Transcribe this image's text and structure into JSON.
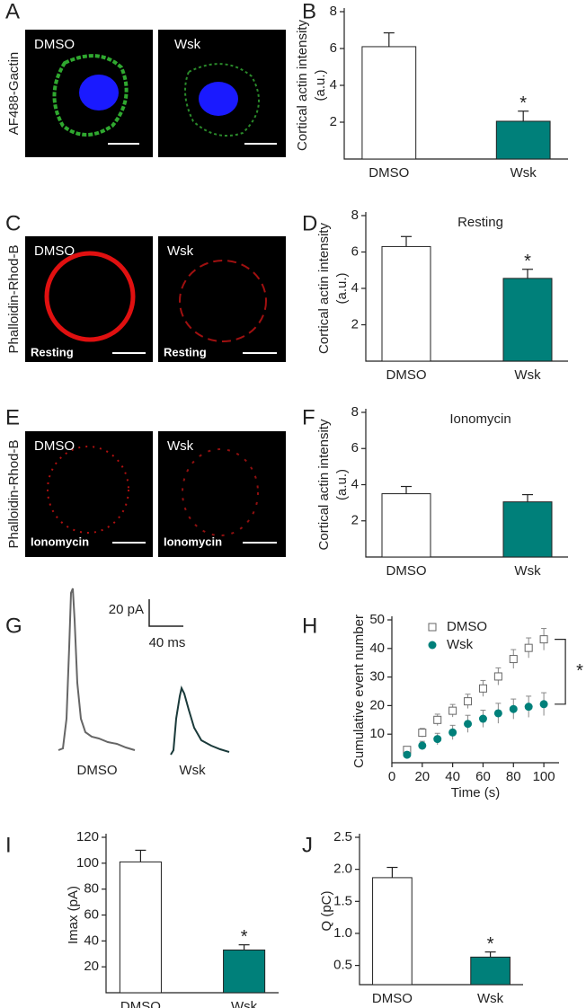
{
  "panel_letters": [
    "A",
    "B",
    "C",
    "D",
    "E",
    "F",
    "G",
    "H",
    "I",
    "J"
  ],
  "images": [
    {
      "ylabel": "AF488-Gactin",
      "left": "DMSO",
      "right": "Wsk"
    },
    {
      "ylabel": "Phalloidin-Rhod-B",
      "left": "DMSO",
      "right": "Wsk",
      "left_note": "Resting",
      "right_note": "Resting"
    },
    {
      "ylabel": "Phalloidin-Rhod-B",
      "left": "DMSO",
      "right": "Wsk",
      "left_note": "Ionomycin",
      "right_note": "Ionomycin"
    }
  ],
  "traces": {
    "scale_y": "20 pA",
    "scale_x": "40 ms",
    "left": "DMSO",
    "right": "Wsk"
  },
  "chart_data": [
    {
      "type": "bar",
      "ylabel": [
        "Cortical actin intensity",
        "(a.u.)"
      ],
      "categories": [
        "DMSO",
        "Wsk"
      ],
      "values": [
        6.1,
        2.05
      ],
      "errors": [
        0.75,
        0.55
      ],
      "colors": [
        "#ffffff",
        "#00807a"
      ],
      "ylim": [
        0,
        8
      ],
      "yticks": [
        2,
        4,
        6,
        8
      ],
      "annotations": [
        "*"
      ]
    },
    {
      "type": "bar",
      "title": "Resting",
      "ylabel": [
        "Cortical actin intensity",
        "(a.u.)"
      ],
      "categories": [
        "DMSO",
        "Wsk"
      ],
      "values": [
        6.3,
        4.55
      ],
      "errors": [
        0.55,
        0.5
      ],
      "colors": [
        "#ffffff",
        "#00807a"
      ],
      "ylim": [
        0,
        8
      ],
      "yticks": [
        2,
        4,
        6,
        8
      ],
      "annotations": [
        "*"
      ]
    },
    {
      "type": "bar",
      "title": "Ionomycin",
      "ylabel": [
        "Cortical actin intensity",
        "(a.u.)"
      ],
      "categories": [
        "DMSO",
        "Wsk"
      ],
      "values": [
        3.5,
        3.05
      ],
      "errors": [
        0.4,
        0.4
      ],
      "colors": [
        "#ffffff",
        "#00807a"
      ],
      "ylim": [
        0,
        8
      ],
      "yticks": [
        2,
        4,
        6,
        8
      ]
    },
    {
      "type": "scatter",
      "xlabel": "Time (s)",
      "ylabel": [
        "Cumulative event number"
      ],
      "x": [
        10,
        20,
        30,
        40,
        50,
        60,
        70,
        80,
        90,
        100
      ],
      "series": [
        {
          "name": "DMSO",
          "color": "#666666",
          "marker": "square",
          "values": [
            4.5,
            10.5,
            15,
            18.2,
            21.5,
            26,
            30.2,
            36.3,
            40.2,
            43.2
          ],
          "errors": [
            1,
            1.5,
            2,
            2.2,
            2.5,
            2.8,
            3,
            3.3,
            3.5,
            3.8
          ]
        },
        {
          "name": "Wsk",
          "color": "#00807a",
          "marker": "circle",
          "values": [
            2.8,
            6,
            8.3,
            10.6,
            13.6,
            15.4,
            17.3,
            18.8,
            19.6,
            20.5
          ],
          "errors": [
            0.8,
            1.5,
            2,
            2.5,
            3,
            3,
            3.5,
            3.5,
            3.7,
            4
          ]
        }
      ],
      "xlim": [
        0,
        110
      ],
      "xticks": [
        0,
        20,
        40,
        60,
        80,
        100
      ],
      "ylim": [
        0,
        50
      ],
      "yticks": [
        10,
        20,
        30,
        40,
        50
      ],
      "annotations": [
        "*"
      ]
    },
    {
      "type": "bar",
      "ylabel": [
        "Imax (pA)"
      ],
      "categories": [
        "DMSO",
        "Wsk"
      ],
      "values": [
        101,
        33
      ],
      "errors": [
        9,
        4
      ],
      "colors": [
        "#ffffff",
        "#00807a"
      ],
      "ylim": [
        0,
        120
      ],
      "yticks": [
        20,
        40,
        60,
        80,
        100,
        120
      ],
      "annotations": [
        "*"
      ]
    },
    {
      "type": "bar",
      "ylabel": [
        "Q (pC)"
      ],
      "categories": [
        "DMSO",
        "Wsk"
      ],
      "values": [
        1.87,
        0.63
      ],
      "errors": [
        0.16,
        0.08
      ],
      "colors": [
        "#ffffff",
        "#00807a"
      ],
      "ylim": [
        0.2,
        2.5
      ],
      "yticks": [
        {
          "value": 0.5,
          "label": "0.5"
        },
        {
          "value": 1,
          "label": "1.0"
        },
        {
          "value": 1.5,
          "label": "1.5"
        },
        {
          "value": 2,
          "label": "2.0"
        },
        {
          "value": 2.5,
          "label": "2.5"
        }
      ],
      "annotations": [
        "*"
      ]
    }
  ]
}
